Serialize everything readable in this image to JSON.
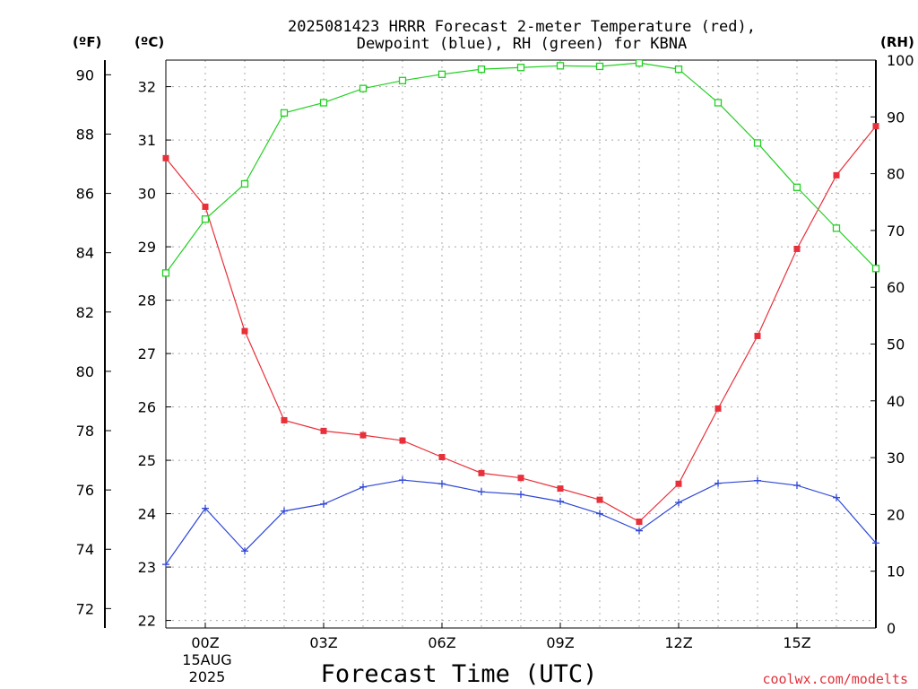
{
  "chart_data": {
    "type": "line",
    "title_line1": "2025081423 HRRR Forecast 2-meter Temperature (red),",
    "title_line2": "Dewpoint (blue), RH (green) for KBNA",
    "xlabel": "Forecast Time (UTC)",
    "credit": "coolwx.com/modelts",
    "units": {
      "fahrenheit": "(ºF)",
      "celsius": "(ºC)",
      "rh": "(RH)"
    },
    "x_ticks": [
      "00Z",
      "03Z",
      "06Z",
      "09Z",
      "12Z",
      "15Z"
    ],
    "x_tick_hours": [
      0,
      3,
      6,
      9,
      12,
      15
    ],
    "date_line1": "15AUG",
    "date_line2": "2025",
    "x_range": [
      -1,
      17
    ],
    "celsius_ticks": [
      "22",
      "23",
      "24",
      "25",
      "26",
      "27",
      "28",
      "29",
      "30",
      "31",
      "32"
    ],
    "celsius_range": [
      21.7,
      32.25
    ],
    "fahrenheit_ticks": [
      "72",
      "74",
      "76",
      "78",
      "80",
      "82",
      "84",
      "86",
      "88",
      "90"
    ],
    "rh_ticks": [
      "0",
      "10",
      "20",
      "30",
      "40",
      "50",
      "60",
      "70",
      "80",
      "90",
      "100"
    ],
    "rh_range": [
      0,
      100
    ],
    "hours": [
      -1,
      0,
      1,
      2,
      3,
      4,
      5,
      6,
      7,
      8,
      9,
      10,
      11,
      12,
      13,
      14,
      15,
      16,
      17
    ],
    "series": [
      {
        "name": "Temperature",
        "color": "#e8303a",
        "axis": "celsius",
        "marker": "filled-square",
        "values": [
          30.66,
          29.75,
          27.42,
          25.75,
          25.55,
          25.47,
          25.37,
          25.06,
          24.76,
          24.67,
          24.47,
          24.26,
          23.85,
          24.56,
          25.97,
          27.33,
          28.96,
          30.34,
          31.26
        ]
      },
      {
        "name": "Dewpoint",
        "color": "#2f47d6",
        "axis": "celsius",
        "marker": "plus",
        "values": [
          23.05,
          24.1,
          23.3,
          24.05,
          24.18,
          24.5,
          24.63,
          24.56,
          24.41,
          24.36,
          24.23,
          24.0,
          23.68,
          24.21,
          24.57,
          24.62,
          24.53,
          24.3,
          23.45
        ]
      },
      {
        "name": "RH",
        "color": "#22d022",
        "axis": "rh",
        "marker": "open-square",
        "values": [
          62.5,
          72.0,
          78.2,
          90.7,
          92.5,
          95.0,
          96.4,
          97.5,
          98.4,
          98.7,
          99.0,
          98.9,
          99.5,
          98.4,
          92.5,
          85.4,
          77.6,
          70.4,
          63.3
        ]
      }
    ]
  }
}
